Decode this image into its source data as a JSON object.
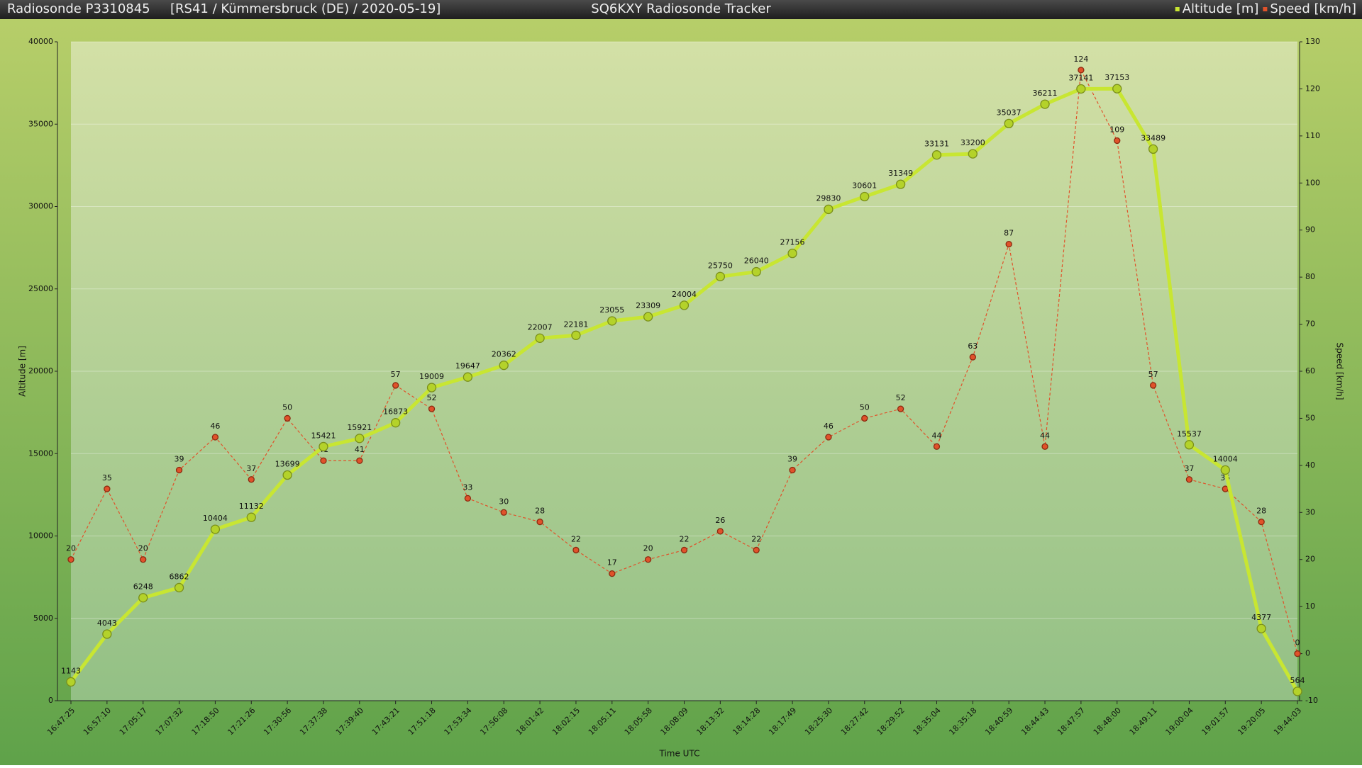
{
  "header": {
    "left": "Radiosonde P3310845",
    "info": "[RS41 / Kümmersbruck (DE) / 2020-05-19]",
    "title": "SQ6KXY Radiosonde Tracker"
  },
  "chart_data": {
    "type": "line",
    "x_label": "Time UTC",
    "y_label": "Altitude [m]",
    "y2_label": "Speed [km/h]",
    "categories": [
      "16:47:25",
      "16:57:10",
      "17:05:17",
      "17:07:32",
      "17:18:50",
      "17:21:26",
      "17:30:56",
      "17:37:38",
      "17:39:40",
      "17:43:21",
      "17:51:18",
      "17:53:34",
      "17:56:08",
      "18:01:42",
      "18:02:15",
      "18:05:11",
      "18:05:58",
      "18:08:09",
      "18:13:32",
      "18:14:28",
      "18:17:49",
      "18:25:30",
      "18:27:42",
      "18:29:52",
      "18:35:04",
      "18:35:18",
      "18:40:59",
      "18:44:43",
      "18:47:57",
      "18:48:00",
      "18:49:11",
      "19:00:04",
      "19:01:57",
      "19:20:05",
      "19:44:03"
    ],
    "series": [
      {
        "name": "Altitude [m]",
        "color": "#c8e632",
        "values": [
          1143,
          4043,
          6248,
          6862,
          10404,
          11132,
          13699,
          15421,
          15921,
          16873,
          19009,
          19647,
          20362,
          22007,
          22181,
          23055,
          23309,
          24004,
          25750,
          26040,
          27156,
          29830,
          30601,
          31349,
          33131,
          33200,
          35037,
          36211,
          37141,
          37153,
          33489,
          15537,
          14004,
          4377,
          564
        ]
      },
      {
        "name": "Speed [km/h]",
        "color": "#e0522a",
        "axis": "y2",
        "values": [
          20,
          35,
          20,
          39,
          46,
          37,
          50,
          41,
          41,
          57,
          52,
          33,
          30,
          28,
          22,
          17,
          20,
          22,
          26,
          22,
          39,
          46,
          50,
          52,
          44,
          63,
          87,
          44,
          124,
          109,
          57,
          37,
          35,
          28,
          0
        ]
      }
    ],
    "ylim": [
      0,
      40000
    ],
    "yticks": [
      0,
      5000,
      10000,
      15000,
      20000,
      25000,
      30000,
      35000,
      40000
    ],
    "y2lim": [
      -10,
      130
    ],
    "y2ticks": [
      -10,
      0,
      10,
      20,
      30,
      40,
      50,
      60,
      70,
      80,
      90,
      100,
      110,
      120,
      130
    ],
    "grid": true,
    "legend": "top-right"
  }
}
